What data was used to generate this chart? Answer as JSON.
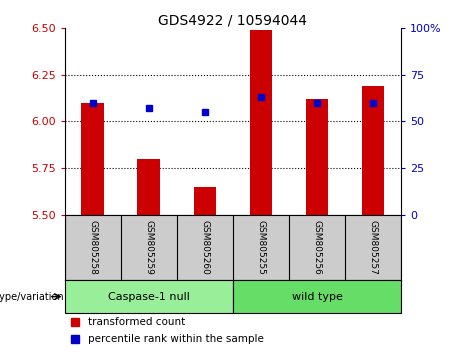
{
  "title": "GDS4922 / 10594044",
  "samples": [
    "GSM805258",
    "GSM805259",
    "GSM805260",
    "GSM805255",
    "GSM805256",
    "GSM805257"
  ],
  "red_values": [
    6.1,
    5.8,
    5.65,
    6.49,
    6.12,
    6.19
  ],
  "blue_values": [
    6.1,
    6.07,
    6.05,
    6.13,
    6.1,
    6.1
  ],
  "ylim": [
    5.5,
    6.5
  ],
  "y2lim": [
    0,
    100
  ],
  "yticks": [
    5.5,
    5.75,
    6.0,
    6.25,
    6.5
  ],
  "y2ticks": [
    0,
    25,
    50,
    75,
    100
  ],
  "bar_bottom": 5.5,
  "bar_color": "#cc0000",
  "dot_color": "#0000cc",
  "groups": [
    {
      "label": "Caspase-1 null",
      "indices": [
        0,
        1,
        2
      ],
      "color": "#99ee99"
    },
    {
      "label": "wild type",
      "indices": [
        3,
        4,
        5
      ],
      "color": "#66dd66"
    }
  ],
  "group_label": "genotype/variation",
  "legend_red": "transformed count",
  "legend_blue": "percentile rank within the sample",
  "tick_area_color": "#cccccc",
  "y_label_color": "#cc0000",
  "y2_label_color": "#0000cc",
  "grid_ticks": [
    5.75,
    6.0,
    6.25
  ]
}
